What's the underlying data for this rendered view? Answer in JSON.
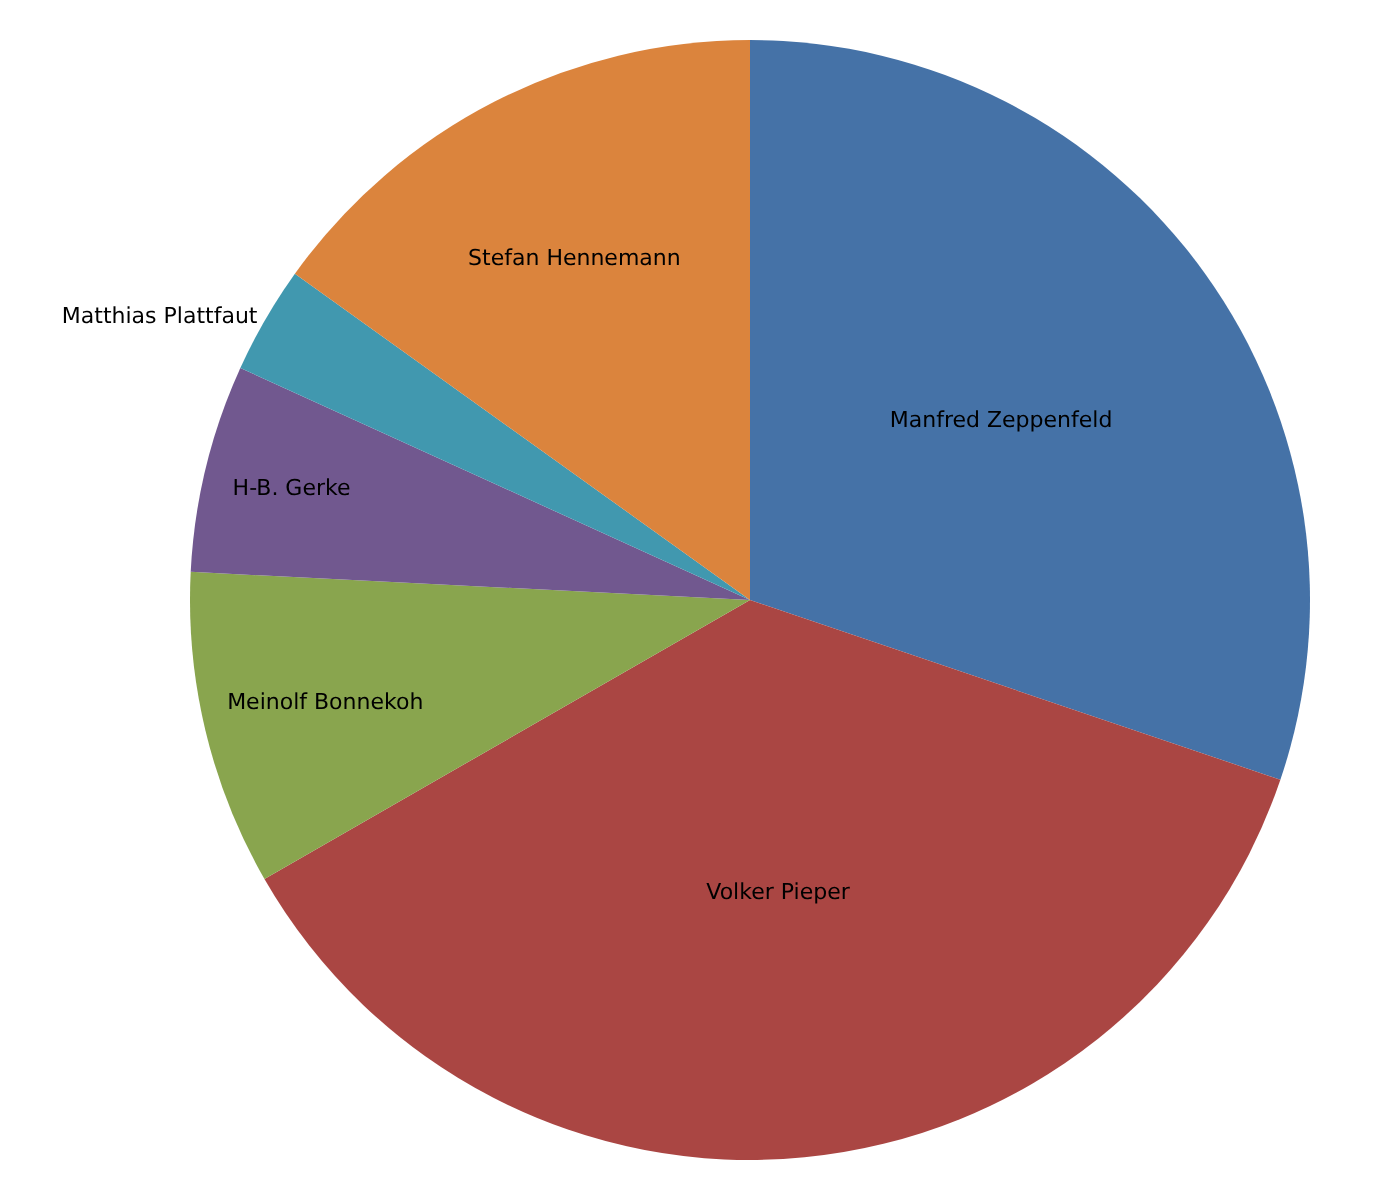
{
  "chart_data": {
    "type": "pie",
    "categories": [
      "Manfred Zeppenfeld",
      "Volker Pieper",
      "Meinolf Bonnekoh",
      "H-B. Gerke",
      "Matthias Plattfaut",
      "Stefan Hennemann"
    ],
    "values": [
      30.2,
      36.5,
      9.1,
      6.0,
      3.1,
      15.1
    ],
    "colors": [
      "#4572a7",
      "#aa4643",
      "#89a54e",
      "#71588f",
      "#4198af",
      "#db843d"
    ],
    "legend": false
  }
}
